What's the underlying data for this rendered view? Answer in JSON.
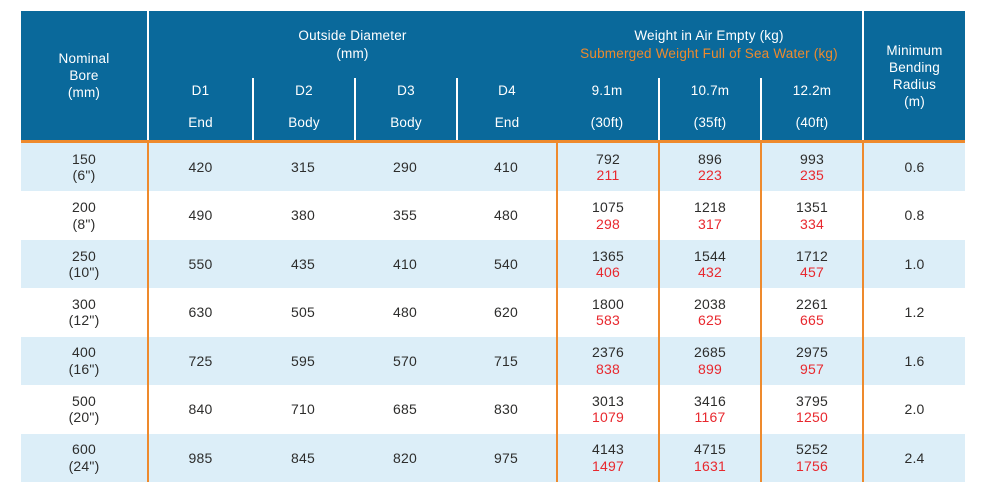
{
  "colors": {
    "header_bg": "#0a699b",
    "accent_orange": "#ee8a2d",
    "alt_row_blue": "#dceef8",
    "submerged_red": "#e8282e",
    "text_dark": "#2d2d2c"
  },
  "header": {
    "nominal_bore_lines": [
      "Nominal",
      "Bore",
      "(mm)"
    ],
    "outside_diameter": {
      "title": "Outside Diameter",
      "unit": "(mm)",
      "subcols": [
        {
          "id": "D1",
          "pos": "End"
        },
        {
          "id": "D2",
          "pos": "Body"
        },
        {
          "id": "D3",
          "pos": "Body"
        },
        {
          "id": "D4",
          "pos": "End"
        }
      ]
    },
    "weight": {
      "air_title": "Weight in Air Empty (kg)",
      "submerged_title": "Submerged Weight Full of Sea Water (kg)",
      "subcols": [
        {
          "length": "9.1m",
          "feet": "(30ft)"
        },
        {
          "length": "10.7m",
          "feet": "(35ft)"
        },
        {
          "length": "12.2m",
          "feet": "(40ft)"
        }
      ]
    },
    "min_bending_lines": [
      "Minimum",
      "Bending",
      "Radius",
      "(m)"
    ]
  },
  "rows": [
    {
      "bore": "150",
      "size": "(6\")",
      "d1": "420",
      "d2": "315",
      "d3": "290",
      "d4": "410",
      "air1": "792",
      "sub1": "211",
      "air2": "896",
      "sub2": "223",
      "air3": "993",
      "sub3": "235",
      "radius": "0.6"
    },
    {
      "bore": "200",
      "size": "(8\")",
      "d1": "490",
      "d2": "380",
      "d3": "355",
      "d4": "480",
      "air1": "1075",
      "sub1": "298",
      "air2": "1218",
      "sub2": "317",
      "air3": "1351",
      "sub3": "334",
      "radius": "0.8"
    },
    {
      "bore": "250",
      "size": "(10\")",
      "d1": "550",
      "d2": "435",
      "d3": "410",
      "d4": "540",
      "air1": "1365",
      "sub1": "406",
      "air2": "1544",
      "sub2": "432",
      "air3": "1712",
      "sub3": "457",
      "radius": "1.0"
    },
    {
      "bore": "300",
      "size": "(12\")",
      "d1": "630",
      "d2": "505",
      "d3": "480",
      "d4": "620",
      "air1": "1800",
      "sub1": "583",
      "air2": "2038",
      "sub2": "625",
      "air3": "2261",
      "sub3": "665",
      "radius": "1.2"
    },
    {
      "bore": "400",
      "size": "(16\")",
      "d1": "725",
      "d2": "595",
      "d3": "570",
      "d4": "715",
      "air1": "2376",
      "sub1": "838",
      "air2": "2685",
      "sub2": "899",
      "air3": "2975",
      "sub3": "957",
      "radius": "1.6"
    },
    {
      "bore": "500",
      "size": "(20\")",
      "d1": "840",
      "d2": "710",
      "d3": "685",
      "d4": "830",
      "air1": "3013",
      "sub1": "1079",
      "air2": "3416",
      "sub2": "1167",
      "air3": "3795",
      "sub3": "1250",
      "radius": "2.0"
    },
    {
      "bore": "600",
      "size": "(24\")",
      "d1": "985",
      "d2": "845",
      "d3": "820",
      "d4": "975",
      "air1": "4143",
      "sub1": "1497",
      "air2": "4715",
      "sub2": "1631",
      "air3": "5252",
      "sub3": "1756",
      "radius": "2.4"
    }
  ]
}
